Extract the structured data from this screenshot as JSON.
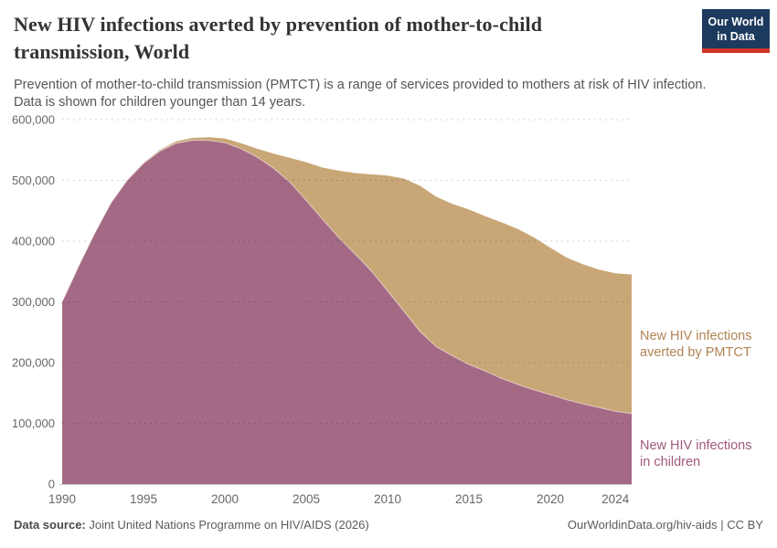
{
  "header": {
    "title": "New HIV infections averted by prevention of mother-to-child transmission, World",
    "title_lines": [
      "New HIV infections averted by prevention of mother-to-child",
      "transmission, World"
    ],
    "subtitle_lines": [
      "Prevention of mother-to-child transmission (PMTCT) is a range of services provided to mothers at risk of HIV infection.",
      "Data is shown for children younger than 14 years."
    ],
    "logo": {
      "line1": "Our World",
      "line2": "in Data",
      "navy": "#1c3a5e",
      "red": "#d0372a"
    }
  },
  "footer": {
    "source_label": "Data source:",
    "source_text": " Joint United Nations Programme on HIV/AIDS (2026)",
    "attribution": "OurWorldinData.org/hiv-aids | CC BY"
  },
  "chart_data": {
    "type": "area",
    "stacked": true,
    "grid": "dashed-horizontal",
    "ylim": [
      0,
      600000
    ],
    "ytick_step": 100000,
    "yticks": [
      0,
      100000,
      200000,
      300000,
      400000,
      500000,
      600000
    ],
    "xticks": [
      1990,
      1995,
      2000,
      2005,
      2010,
      2015,
      2020,
      2024
    ],
    "x": [
      1990,
      1991,
      1992,
      1993,
      1994,
      1995,
      1996,
      1997,
      1998,
      1999,
      2000,
      2001,
      2002,
      2003,
      2004,
      2005,
      2006,
      2007,
      2008,
      2009,
      2010,
      2011,
      2012,
      2013,
      2014,
      2015,
      2016,
      2017,
      2018,
      2019,
      2020,
      2021,
      2022,
      2023,
      2024,
      2025
    ],
    "series": [
      {
        "name": "New HIV infections in children",
        "label_lines": [
          "New HIV infections",
          "in children"
        ],
        "color": "#a46a85",
        "label_color": "#a05a7c",
        "values": [
          300000,
          358000,
          413000,
          463000,
          500000,
          528000,
          548000,
          561000,
          566000,
          566000,
          562000,
          552000,
          538000,
          520000,
          497000,
          467000,
          436000,
          406000,
          379000,
          351000,
          318000,
          285000,
          251000,
          226000,
          211000,
          197000,
          186000,
          174000,
          164000,
          155000,
          147000,
          139000,
          132000,
          126000,
          120000,
          116000
        ]
      },
      {
        "name": "New HIV infections averted by PMTCT",
        "label_lines": [
          "New HIV infections",
          "averted by PMTCT"
        ],
        "color": "#c9a676",
        "label_color": "#b08355",
        "values": [
          0,
          0,
          0,
          0,
          1000,
          1000,
          2000,
          3000,
          4000,
          5000,
          7000,
          9000,
          14000,
          24000,
          40000,
          63000,
          85000,
          110000,
          133000,
          159000,
          190000,
          218000,
          240000,
          247000,
          250000,
          255000,
          255000,
          257000,
          256000,
          251000,
          242000,
          234000,
          230000,
          227000,
          227000,
          229000
        ]
      }
    ],
    "axis_color": "#666666",
    "legend_position": "right-annotations"
  }
}
